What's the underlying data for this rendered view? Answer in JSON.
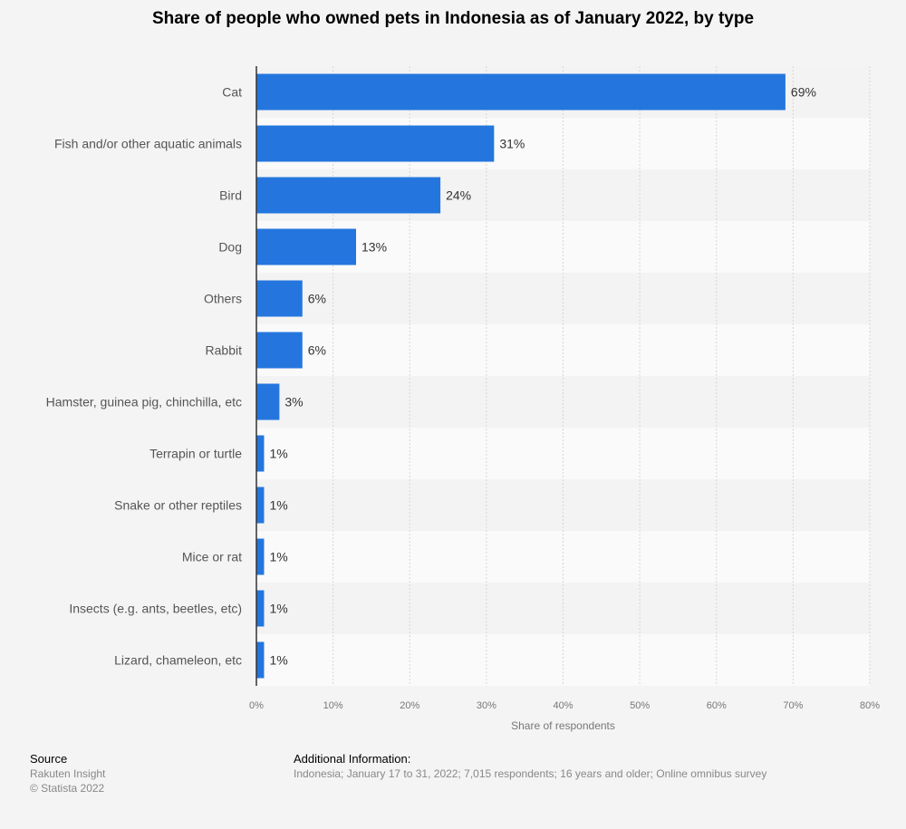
{
  "chart_data": {
    "type": "bar",
    "orientation": "horizontal",
    "title": "Share of people who owned pets in Indonesia as of January 2022, by type",
    "categories": [
      "Cat",
      "Fish and/or other aquatic animals",
      "Bird",
      "Dog",
      "Others",
      "Rabbit",
      "Hamster, guinea pig, chinchilla, etc",
      "Terrapin or turtle",
      "Snake or other reptiles",
      "Mice or rat",
      "Insects (e.g. ants, beetles, etc)",
      "Lizard, chameleon, etc"
    ],
    "values": [
      69,
      31,
      24,
      13,
      6,
      6,
      3,
      1,
      1,
      1,
      1,
      1
    ],
    "data_labels": [
      "69%",
      "31%",
      "24%",
      "13%",
      "6%",
      "6%",
      "3%",
      "1%",
      "1%",
      "1%",
      "1%",
      "1%"
    ],
    "xlabel": "Share of respondents",
    "ylabel": "",
    "xlim": [
      0,
      80
    ],
    "xticks": [
      "0%",
      "10%",
      "20%",
      "30%",
      "40%",
      "50%",
      "60%",
      "70%",
      "80%"
    ],
    "grid": true,
    "bar_color": "#2476de"
  },
  "footer": {
    "source_heading": "Source",
    "source_lines": [
      "Rakuten Insight",
      "© Statista 2022"
    ],
    "info_heading": "Additional Information:",
    "info_text": "Indonesia; January 17 to 31, 2022; 7,015 respondents; 16 years and older; Online omnibus survey"
  }
}
